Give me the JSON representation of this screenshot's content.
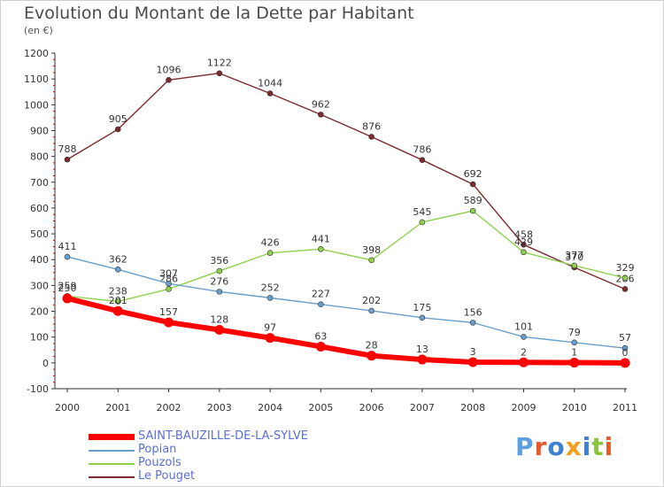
{
  "title": "Evolution du Montant de la Dette par Habitant",
  "unit_label": "(en €)",
  "logo": {
    "text": "Proxiti",
    "letter_colors": [
      "#5aa0e0",
      "#e85a2a",
      "#3d7fd0",
      "#f0a020",
      "#3d7fd0",
      "#8ac33c",
      "#e85a2a"
    ]
  },
  "chart_data": {
    "type": "line",
    "x": [
      2000,
      2001,
      2002,
      2003,
      2004,
      2005,
      2006,
      2007,
      2008,
      2009,
      2010,
      2011
    ],
    "ylim": [
      -100,
      1200
    ],
    "yticks": [
      -100,
      0,
      100,
      200,
      300,
      400,
      500,
      600,
      700,
      800,
      900,
      1000,
      1100,
      1200
    ],
    "grid": false,
    "legend_position": "bottom-left",
    "series": [
      {
        "name": "SAINT-BAUZILLE-DE-LA-SYLVE",
        "color": "#ff0000",
        "values": [
          250,
          201,
          157,
          128,
          97,
          63,
          28,
          13,
          3,
          2,
          1,
          0
        ],
        "labels": [
          "250",
          "201",
          "157",
          "128",
          "97",
          "63",
          "28",
          "13",
          "3",
          "2",
          "1",
          "0"
        ]
      },
      {
        "name": "Popian",
        "color": "#6a9fcb",
        "values": [
          411,
          362,
          307,
          276,
          252,
          227,
          202,
          175,
          156,
          101,
          79,
          57
        ],
        "labels": [
          "411",
          "362",
          "307",
          "276",
          "252",
          "227",
          "202",
          "175",
          "156",
          "101",
          "79",
          "57"
        ]
      },
      {
        "name": "Pouzols",
        "color": "#8fd14f",
        "values": [
          259,
          238,
          286,
          356,
          426,
          441,
          398,
          545,
          589,
          429,
          377,
          329
        ],
        "labels": [
          "259",
          "238",
          "286",
          "356",
          "426",
          "441",
          "398",
          "545",
          "589",
          "429",
          "377",
          "329"
        ]
      },
      {
        "name": "Le Pouget",
        "color": "#7b2a2e",
        "values": [
          788,
          905,
          1096,
          1122,
          1044,
          962,
          876,
          786,
          692,
          458,
          370,
          286
        ],
        "labels": [
          "788",
          "905",
          "1096",
          "1122",
          "1044",
          "962",
          "876",
          "786",
          "692",
          "458",
          "370",
          "286"
        ]
      }
    ]
  }
}
